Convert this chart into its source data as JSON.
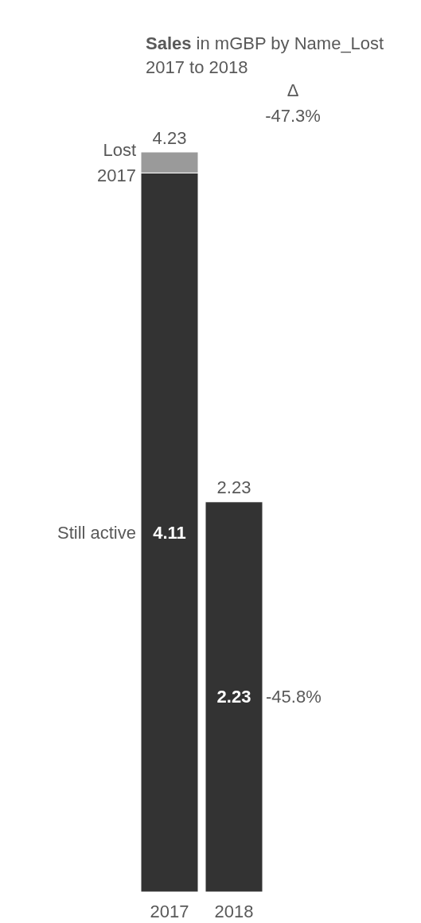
{
  "chart_data": {
    "type": "bar",
    "title": "Sales in mGBP by Name_Lost",
    "subtitle": "2017 to 2018",
    "categories": [
      "2017",
      "2018"
    ],
    "stacked": true,
    "series": [
      {
        "name": "Still active",
        "color": "#333333",
        "values": [
          4.11,
          2.23
        ],
        "value_labels": [
          "4.11",
          "2.23"
        ]
      },
      {
        "name": "Lost 2017",
        "color": "#9a9a9a",
        "values": [
          0.12,
          null
        ]
      }
    ],
    "totals": [
      "4.23",
      "2.23"
    ],
    "annotations": [
      "Δ",
      "-47.3%",
      "-45.8%"
    ]
  }
}
